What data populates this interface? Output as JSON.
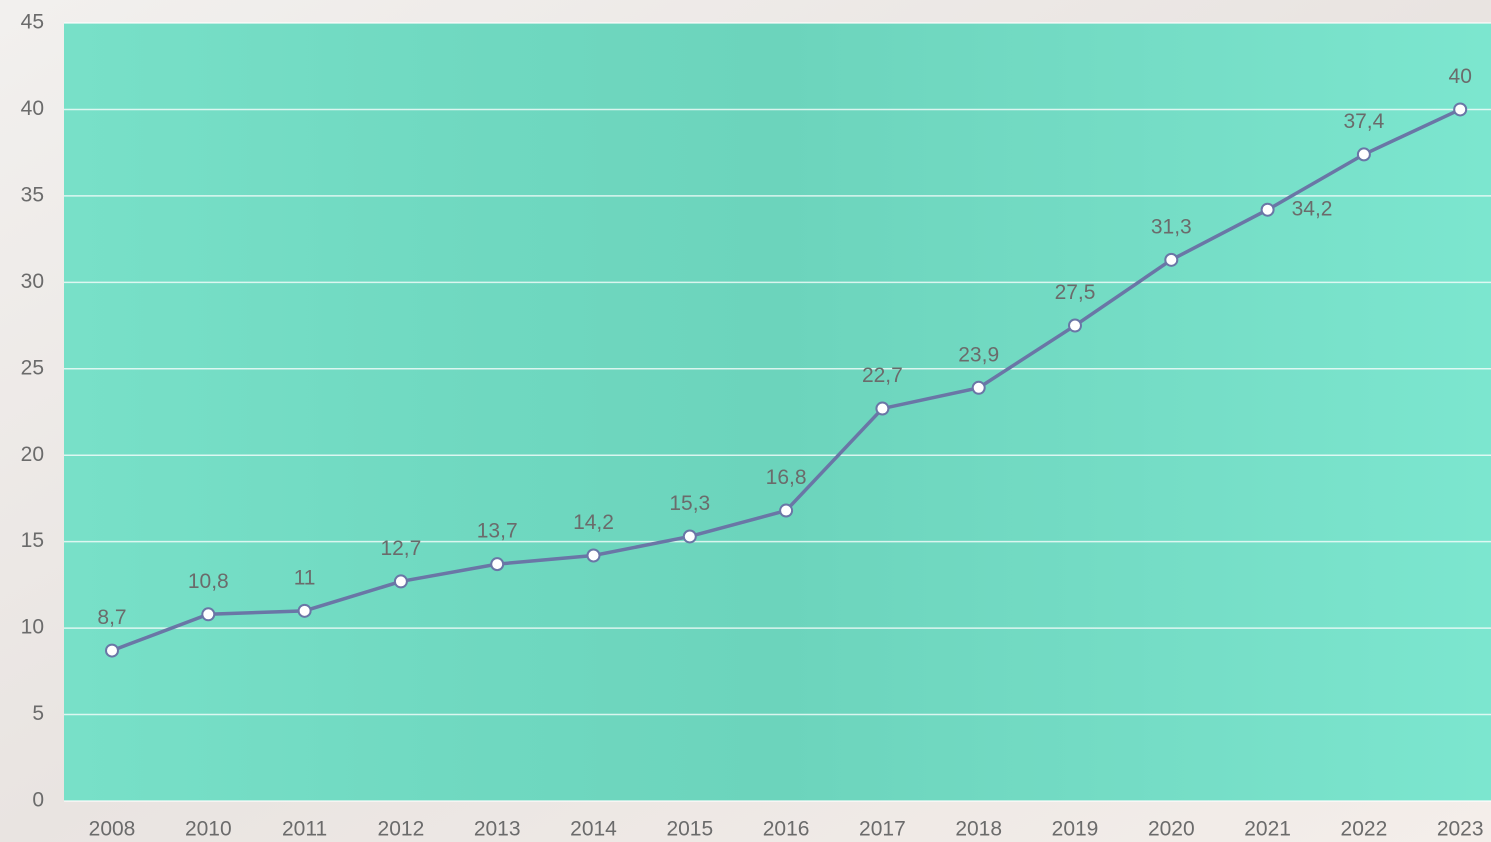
{
  "chart_data": {
    "type": "line",
    "categories": [
      "2008",
      "2010",
      "2011",
      "2012",
      "2013",
      "2014",
      "2015",
      "2016",
      "2017",
      "2018",
      "2019",
      "2020",
      "2021",
      "2022",
      "2023"
    ],
    "series": [
      {
        "color": "#6a76a6",
        "values": [
          8.7,
          10.8,
          11,
          12.7,
          13.7,
          14.2,
          15.3,
          16.8,
          22.7,
          23.9,
          27.5,
          31.3,
          34.2,
          37.4,
          40
        ],
        "value_labels": [
          "8,7",
          "10,8",
          "11",
          "12,7",
          "13,7",
          "14,2",
          "15,3",
          "16,8",
          "22,7",
          "23,9",
          "27,5",
          "31,3",
          "34,2",
          "37,4",
          "40"
        ]
      }
    ],
    "ylim": [
      0,
      45
    ],
    "yticks": [
      0,
      5,
      10,
      15,
      20,
      25,
      30,
      35,
      40,
      45
    ],
    "grid": true
  }
}
